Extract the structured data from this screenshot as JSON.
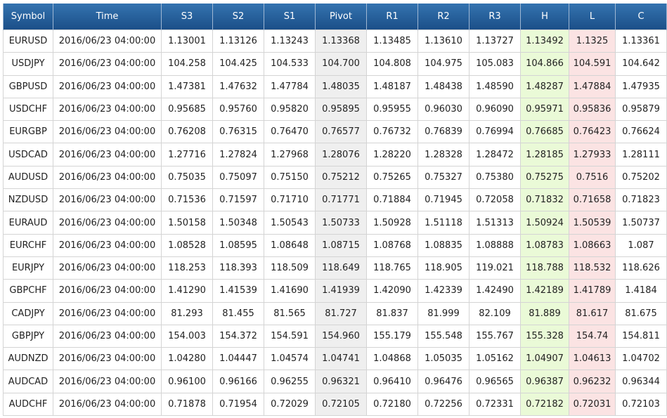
{
  "headers": [
    "Symbol",
    "Time",
    "S3",
    "S2",
    "S1",
    "Pivot",
    "R1",
    "R2",
    "R3",
    "H",
    "L",
    "C"
  ],
  "rows": [
    [
      "EURUSD",
      "2016/06/23 04:00:00",
      "1.13001",
      "1.13126",
      "1.13243",
      "1.13368",
      "1.13485",
      "1.13610",
      "1.13727",
      "1.13492",
      "1.1325",
      "1.13361"
    ],
    [
      "USDJPY",
      "2016/06/23 04:00:00",
      "104.258",
      "104.425",
      "104.533",
      "104.700",
      "104.808",
      "104.975",
      "105.083",
      "104.866",
      "104.591",
      "104.642"
    ],
    [
      "GBPUSD",
      "2016/06/23 04:00:00",
      "1.47381",
      "1.47632",
      "1.47784",
      "1.48035",
      "1.48187",
      "1.48438",
      "1.48590",
      "1.48287",
      "1.47884",
      "1.47935"
    ],
    [
      "USDCHF",
      "2016/06/23 04:00:00",
      "0.95685",
      "0.95760",
      "0.95820",
      "0.95895",
      "0.95955",
      "0.96030",
      "0.96090",
      "0.95971",
      "0.95836",
      "0.95879"
    ],
    [
      "EURGBP",
      "2016/06/23 04:00:00",
      "0.76208",
      "0.76315",
      "0.76470",
      "0.76577",
      "0.76732",
      "0.76839",
      "0.76994",
      "0.76685",
      "0.76423",
      "0.76624"
    ],
    [
      "USDCAD",
      "2016/06/23 04:00:00",
      "1.27716",
      "1.27824",
      "1.27968",
      "1.28076",
      "1.28220",
      "1.28328",
      "1.28472",
      "1.28185",
      "1.27933",
      "1.28111"
    ],
    [
      "AUDUSD",
      "2016/06/23 04:00:00",
      "0.75035",
      "0.75097",
      "0.75150",
      "0.75212",
      "0.75265",
      "0.75327",
      "0.75380",
      "0.75275",
      "0.7516",
      "0.75202"
    ],
    [
      "NZDUSD",
      "2016/06/23 04:00:00",
      "0.71536",
      "0.71597",
      "0.71710",
      "0.71771",
      "0.71884",
      "0.71945",
      "0.72058",
      "0.71832",
      "0.71658",
      "0.71823"
    ],
    [
      "EURAUD",
      "2016/06/23 04:00:00",
      "1.50158",
      "1.50348",
      "1.50543",
      "1.50733",
      "1.50928",
      "1.51118",
      "1.51313",
      "1.50924",
      "1.50539",
      "1.50737"
    ],
    [
      "EURCHF",
      "2016/06/23 04:00:00",
      "1.08528",
      "1.08595",
      "1.08648",
      "1.08715",
      "1.08768",
      "1.08835",
      "1.08888",
      "1.08783",
      "1.08663",
      "1.087"
    ],
    [
      "EURJPY",
      "2016/06/23 04:00:00",
      "118.253",
      "118.393",
      "118.509",
      "118.649",
      "118.765",
      "118.905",
      "119.021",
      "118.788",
      "118.532",
      "118.626"
    ],
    [
      "GBPCHF",
      "2016/06/23 04:00:00",
      "1.41290",
      "1.41539",
      "1.41690",
      "1.41939",
      "1.42090",
      "1.42339",
      "1.42490",
      "1.42189",
      "1.41789",
      "1.4184"
    ],
    [
      "CADJPY",
      "2016/06/23 04:00:00",
      "81.293",
      "81.455",
      "81.565",
      "81.727",
      "81.837",
      "81.999",
      "82.109",
      "81.889",
      "81.617",
      "81.675"
    ],
    [
      "GBPJPY",
      "2016/06/23 04:00:00",
      "154.003",
      "154.372",
      "154.591",
      "154.960",
      "155.179",
      "155.548",
      "155.767",
      "155.328",
      "154.74",
      "154.811"
    ],
    [
      "AUDNZD",
      "2016/06/23 04:00:00",
      "1.04280",
      "1.04447",
      "1.04574",
      "1.04741",
      "1.04868",
      "1.05035",
      "1.05162",
      "1.04907",
      "1.04613",
      "1.04702"
    ],
    [
      "AUDCAD",
      "2016/06/23 04:00:00",
      "0.96100",
      "0.96166",
      "0.96255",
      "0.96321",
      "0.96410",
      "0.96476",
      "0.96565",
      "0.96387",
      "0.96232",
      "0.96344"
    ],
    [
      "AUDCHF",
      "2016/06/23 04:00:00",
      "0.71878",
      "0.71954",
      "0.72029",
      "0.72105",
      "0.72180",
      "0.72256",
      "0.72331",
      "0.72182",
      "0.72031",
      "0.72103"
    ]
  ],
  "colors": {
    "header_top": "#3473b0",
    "header_bottom": "#1b4f88",
    "pivot_column": "#efefef",
    "high_column": "#eafad7",
    "low_column": "#fbe3e3",
    "grid": "#d4d4d4"
  }
}
